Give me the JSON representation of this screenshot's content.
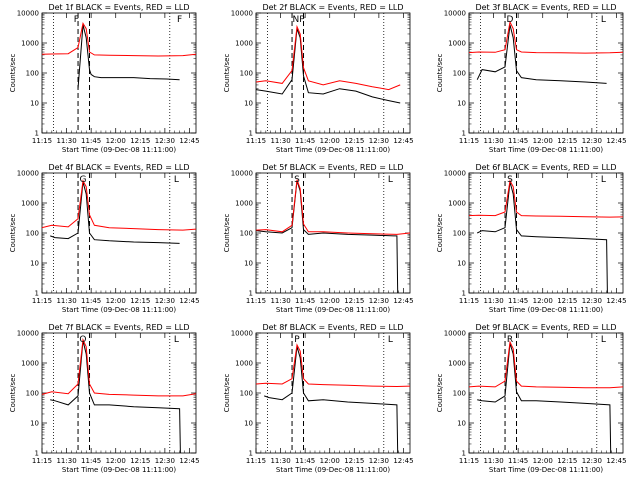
{
  "figure": {
    "xlabel": "Start Time (09-Dec-08 11:11:00)",
    "ylabel": "Counts/sec",
    "xticks": [
      "11:15",
      "11:30",
      "11:45",
      "12:00",
      "12:15",
      "12:30",
      "12:45"
    ],
    "yticks": [
      "1",
      "10",
      "100",
      "1000",
      "10000"
    ],
    "colors": {
      "events": "#000000",
      "lld": "#ff0000",
      "axes": "#000000"
    }
  },
  "chart_data": [
    {
      "type": "line",
      "title": "Det 1f BLACK = Events, RED = LLD",
      "xlabel": "",
      "ylabel": "Counts/sec",
      "x_unit": "minutes after 11:11:00",
      "xlim": [
        4,
        98
      ],
      "ylim": [
        1,
        10000
      ],
      "yscale": "log",
      "grid": false,
      "markers": [
        {
          "label": "F",
          "x": 25
        },
        {
          "label": "F",
          "x": 88
        }
      ],
      "dotted_lines": [
        11,
        82
      ],
      "dashed_lines": [
        26,
        33
      ],
      "series": [
        {
          "name": "Events",
          "color": "#000000",
          "x": [
            26,
            29,
            31,
            33,
            34,
            36,
            40,
            50,
            60,
            70,
            80,
            88
          ],
          "y": [
            30,
            4000,
            1500,
            130,
            90,
            75,
            70,
            70,
            70,
            65,
            63,
            60
          ]
        },
        {
          "name": "LLD",
          "color": "#ff0000",
          "x": [
            4,
            10,
            20,
            26,
            29,
            31,
            33,
            36,
            45,
            60,
            75,
            90,
            98
          ],
          "y": [
            420,
            430,
            440,
            700,
            4500,
            3000,
            500,
            400,
            390,
            380,
            370,
            380,
            420
          ]
        }
      ]
    },
    {
      "type": "line",
      "title": "Det 2f BLACK = Events, RED = LLD",
      "xlabel": "",
      "ylabel": "Counts/sec",
      "x_unit": "minutes after 11:11:00",
      "xlim": [
        4,
        98
      ],
      "ylim": [
        1,
        10000
      ],
      "yscale": "log",
      "grid": false,
      "markers": [
        {
          "label": "NP",
          "x": 30
        }
      ],
      "dotted_lines": [
        11,
        82
      ],
      "dashed_lines": [
        26,
        33
      ],
      "series": [
        {
          "name": "Events",
          "color": "#000000",
          "x": [
            4,
            10,
            20,
            26,
            29,
            31,
            33,
            36,
            45,
            55,
            65,
            75,
            85,
            92
          ],
          "y": [
            28,
            25,
            20,
            60,
            3000,
            1500,
            80,
            22,
            20,
            30,
            25,
            16,
            12,
            10
          ]
        },
        {
          "name": "LLD",
          "color": "#ff0000",
          "x": [
            4,
            10,
            20,
            26,
            29,
            31,
            33,
            36,
            45,
            55,
            65,
            75,
            85,
            92
          ],
          "y": [
            50,
            55,
            45,
            120,
            3500,
            2000,
            150,
            55,
            40,
            55,
            45,
            35,
            28,
            40
          ]
        }
      ]
    },
    {
      "type": "line",
      "title": "Det 3f BLACK = Events, RED = LLD",
      "xlabel": "",
      "ylabel": "Counts/sec",
      "x_unit": "minutes after 11:11:00",
      "xlim": [
        4,
        98
      ],
      "ylim": [
        1,
        10000
      ],
      "yscale": "log",
      "grid": false,
      "markers": [
        {
          "label": "D",
          "x": 29
        },
        {
          "label": "L",
          "x": 86
        }
      ],
      "dotted_lines": [
        11,
        82
      ],
      "dashed_lines": [
        26,
        33
      ],
      "series": [
        {
          "name": "Events",
          "color": "#000000",
          "x": [
            9,
            12,
            20,
            26,
            29,
            31,
            33,
            36,
            45,
            60,
            75,
            88
          ],
          "y": [
            60,
            130,
            110,
            160,
            4000,
            1500,
            120,
            70,
            60,
            55,
            50,
            45
          ]
        },
        {
          "name": "LLD",
          "color": "#ff0000",
          "x": [
            4,
            10,
            20,
            26,
            29,
            31,
            33,
            36,
            45,
            60,
            75,
            90,
            98
          ],
          "y": [
            480,
            500,
            490,
            600,
            5000,
            3000,
            600,
            500,
            480,
            470,
            460,
            470,
            490
          ]
        }
      ]
    },
    {
      "type": "line",
      "title": "Det 4f BLACK = Events, RED = LLD",
      "xlabel": "",
      "ylabel": "Counts/sec",
      "x_unit": "minutes after 11:11:00",
      "xlim": [
        4,
        98
      ],
      "ylim": [
        1,
        10000
      ],
      "yscale": "log",
      "grid": false,
      "markers": [
        {
          "label": "G",
          "x": 29
        },
        {
          "label": "L",
          "x": 86
        }
      ],
      "dotted_lines": [
        11,
        82
      ],
      "dashed_lines": [
        26,
        33
      ],
      "series": [
        {
          "name": "Events",
          "color": "#000000",
          "x": [
            9,
            12,
            20,
            26,
            29,
            31,
            33,
            36,
            45,
            60,
            75,
            88
          ],
          "y": [
            80,
            70,
            65,
            100,
            5000,
            2000,
            100,
            60,
            55,
            50,
            48,
            45
          ]
        },
        {
          "name": "LLD",
          "color": "#ff0000",
          "x": [
            4,
            10,
            20,
            26,
            29,
            31,
            33,
            36,
            45,
            60,
            75,
            90,
            98
          ],
          "y": [
            150,
            180,
            160,
            300,
            5500,
            3500,
            400,
            180,
            150,
            140,
            130,
            125,
            135
          ]
        }
      ]
    },
    {
      "type": "line",
      "title": "Det 5f BLACK = Events, RED = LLD",
      "xlabel": "",
      "ylabel": "Counts/sec",
      "x_unit": "minutes after 11:11:00",
      "xlim": [
        4,
        98
      ],
      "ylim": [
        1,
        10000
      ],
      "yscale": "log",
      "grid": false,
      "markers": [
        {
          "label": "S",
          "x": 29
        },
        {
          "label": "L",
          "x": 86
        }
      ],
      "dotted_lines": [
        11,
        82
      ],
      "dashed_lines": [
        26,
        33
      ],
      "series": [
        {
          "name": "Events",
          "color": "#000000",
          "x": [
            4,
            10,
            20,
            26,
            29,
            31,
            33,
            36,
            45,
            60,
            75,
            88,
            90,
            90.5
          ],
          "y": [
            120,
            110,
            100,
            150,
            5500,
            2500,
            130,
            90,
            100,
            90,
            85,
            80,
            80,
            1
          ]
        },
        {
          "name": "LLD",
          "color": "#ff0000",
          "x": [
            4,
            10,
            20,
            26,
            29,
            31,
            33,
            36,
            45,
            60,
            75,
            90,
            98
          ],
          "y": [
            125,
            130,
            110,
            180,
            6000,
            3000,
            200,
            110,
            110,
            100,
            95,
            90,
            100
          ]
        }
      ]
    },
    {
      "type": "line",
      "title": "Det 6f BLACK = Events, RED = LLD",
      "xlabel": "",
      "ylabel": "Counts/sec",
      "x_unit": "minutes after 11:11:00",
      "xlim": [
        4,
        98
      ],
      "ylim": [
        1,
        10000
      ],
      "yscale": "log",
      "grid": false,
      "markers": [
        {
          "label": "S",
          "x": 29
        },
        {
          "label": "L",
          "x": 86
        }
      ],
      "dotted_lines": [
        11,
        82
      ],
      "dashed_lines": [
        26,
        33
      ],
      "series": [
        {
          "name": "Events",
          "color": "#000000",
          "x": [
            9,
            12,
            20,
            26,
            29,
            31,
            33,
            36,
            45,
            60,
            75,
            88,
            88.5
          ],
          "y": [
            100,
            120,
            110,
            150,
            5000,
            2000,
            130,
            80,
            75,
            70,
            65,
            60,
            1
          ]
        },
        {
          "name": "LLD",
          "color": "#ff0000",
          "x": [
            4,
            10,
            20,
            26,
            29,
            31,
            33,
            36,
            45,
            60,
            75,
            90,
            98
          ],
          "y": [
            380,
            390,
            380,
            500,
            5500,
            3500,
            500,
            380,
            370,
            360,
            350,
            340,
            345
          ]
        }
      ]
    },
    {
      "type": "line",
      "title": "Det 7f BLACK = Events, RED = LLD",
      "xlabel": "",
      "ylabel": "Counts/sec",
      "x_unit": "minutes after 11:11:00",
      "xlim": [
        4,
        98
      ],
      "ylim": [
        1,
        10000
      ],
      "yscale": "log",
      "grid": false,
      "markers": [
        {
          "label": "O",
          "x": 29
        },
        {
          "label": "L",
          "x": 86
        }
      ],
      "dotted_lines": [
        11,
        82
      ],
      "dashed_lines": [
        26,
        33
      ],
      "series": [
        {
          "name": "Events",
          "color": "#000000",
          "x": [
            9,
            12,
            20,
            26,
            29,
            31,
            33,
            36,
            45,
            60,
            75,
            88,
            88.5
          ],
          "y": [
            60,
            55,
            40,
            80,
            5500,
            2000,
            100,
            40,
            40,
            35,
            32,
            30,
            1
          ]
        },
        {
          "name": "LLD",
          "color": "#ff0000",
          "x": [
            4,
            10,
            20,
            26,
            29,
            31,
            33,
            36,
            45,
            60,
            75,
            90,
            98
          ],
          "y": [
            90,
            110,
            95,
            200,
            6000,
            3500,
            200,
            100,
            90,
            85,
            80,
            80,
            95
          ]
        }
      ]
    },
    {
      "type": "line",
      "title": "Det 8f BLACK = Events, RED = LLD",
      "xlabel": "",
      "ylabel": "Counts/sec",
      "x_unit": "minutes after 11:11:00",
      "xlim": [
        4,
        98
      ],
      "ylim": [
        1,
        10000
      ],
      "yscale": "log",
      "grid": false,
      "markers": [
        {
          "label": "P",
          "x": 29
        },
        {
          "label": "L",
          "x": 86
        }
      ],
      "dotted_lines": [
        11,
        82
      ],
      "dashed_lines": [
        26,
        33
      ],
      "series": [
        {
          "name": "Events",
          "color": "#000000",
          "x": [
            9,
            12,
            20,
            26,
            29,
            31,
            33,
            36,
            45,
            60,
            75,
            90,
            90.5
          ],
          "y": [
            80,
            70,
            60,
            100,
            3500,
            1500,
            100,
            55,
            60,
            50,
            45,
            40,
            1
          ]
        },
        {
          "name": "LLD",
          "color": "#ff0000",
          "x": [
            4,
            10,
            20,
            26,
            29,
            31,
            33,
            36,
            45,
            60,
            75,
            90,
            98
          ],
          "y": [
            200,
            210,
            200,
            300,
            4000,
            2500,
            300,
            200,
            190,
            180,
            170,
            165,
            170
          ]
        }
      ]
    },
    {
      "type": "line",
      "title": "Det 9f BLACK = Events, RED = LLD",
      "xlabel": "",
      "ylabel": "Counts/sec",
      "x_unit": "minutes after 11:11:00",
      "xlim": [
        4,
        98
      ],
      "ylim": [
        1,
        10000
      ],
      "yscale": "log",
      "grid": false,
      "markers": [
        {
          "label": "R",
          "x": 29
        },
        {
          "label": "L",
          "x": 86
        }
      ],
      "dotted_lines": [
        11,
        82
      ],
      "dashed_lines": [
        26,
        33
      ],
      "series": [
        {
          "name": "Events",
          "color": "#000000",
          "x": [
            9,
            12,
            20,
            26,
            29,
            31,
            33,
            36,
            45,
            60,
            75,
            90,
            90.5
          ],
          "y": [
            60,
            55,
            50,
            80,
            4500,
            2000,
            110,
            55,
            55,
            50,
            45,
            40,
            1
          ]
        },
        {
          "name": "LLD",
          "color": "#ff0000",
          "x": [
            4,
            10,
            20,
            26,
            29,
            31,
            33,
            36,
            45,
            60,
            75,
            90,
            98
          ],
          "y": [
            160,
            170,
            160,
            250,
            5000,
            3000,
            250,
            170,
            160,
            155,
            150,
            150,
            160
          ]
        }
      ]
    }
  ]
}
